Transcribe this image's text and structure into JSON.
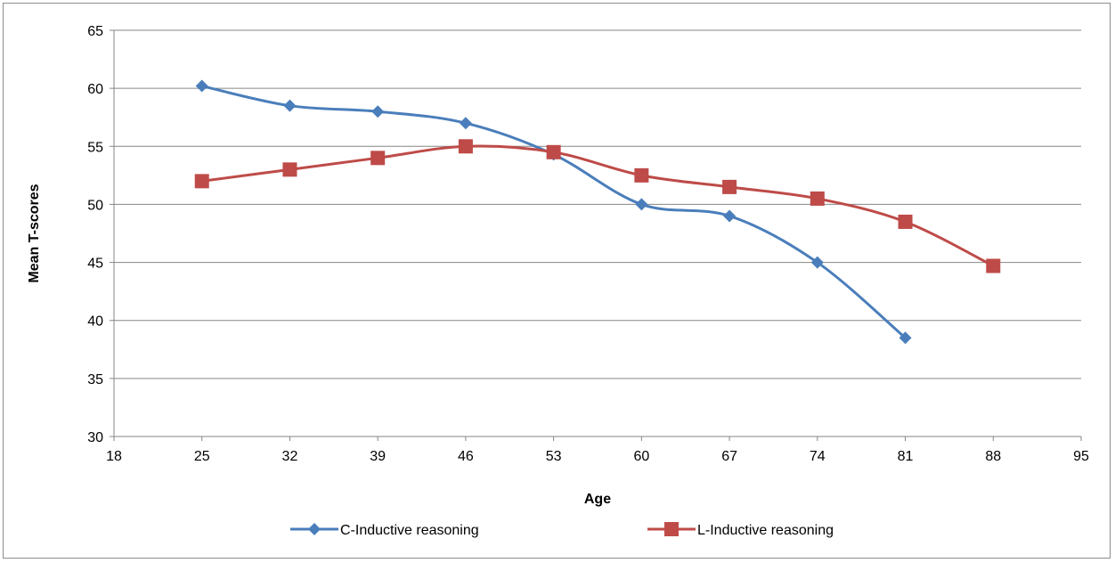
{
  "chart_data": {
    "type": "scatter",
    "title": "",
    "xlabel": "Age",
    "ylabel": "Mean T-scores",
    "xlim": [
      18,
      95
    ],
    "ylim": [
      30,
      65
    ],
    "xticks": [
      18,
      25,
      32,
      39,
      46,
      53,
      60,
      67,
      74,
      81,
      88,
      95
    ],
    "yticks": [
      30,
      35,
      40,
      45,
      50,
      55,
      60,
      65
    ],
    "grid": "horizontal",
    "legend": "bottom",
    "series": [
      {
        "name": "C-Inductive reasoning",
        "color": "#4a7ebb",
        "marker": "diamond",
        "smooth": true,
        "x": [
          25,
          32,
          39,
          46,
          53,
          60,
          67,
          74,
          81
        ],
        "y": [
          60.2,
          58.5,
          58.0,
          57.0,
          54.3,
          50.0,
          49.0,
          45.0,
          38.5
        ]
      },
      {
        "name": "L-Inductive reasoning",
        "color": "#be4b48",
        "marker": "square",
        "smooth": true,
        "x": [
          25,
          32,
          39,
          46,
          53,
          60,
          67,
          74,
          81,
          88
        ],
        "y": [
          52.0,
          53.0,
          54.0,
          55.0,
          54.5,
          52.5,
          51.5,
          50.5,
          48.5,
          44.7
        ]
      }
    ]
  }
}
